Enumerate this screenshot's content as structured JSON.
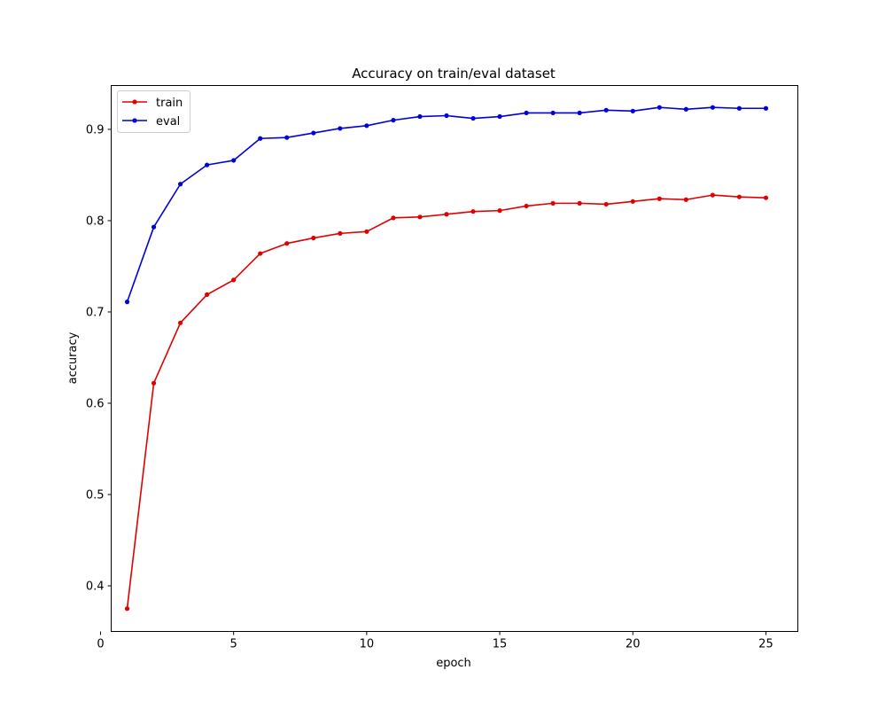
{
  "chart_data": {
    "type": "line",
    "title": "Accuracy on train/eval dataset",
    "xlabel": "epoch",
    "ylabel": "accuracy",
    "x": [
      1,
      2,
      3,
      4,
      5,
      6,
      7,
      8,
      9,
      10,
      11,
      12,
      13,
      14,
      15,
      16,
      17,
      18,
      19,
      20,
      21,
      22,
      23,
      24,
      25
    ],
    "xlim": [
      0.4,
      26.2
    ],
    "ylim": [
      0.35,
      0.948
    ],
    "xticks": [
      0,
      5,
      10,
      15,
      20,
      25
    ],
    "yticks": [
      0.4,
      0.5,
      0.6,
      0.7,
      0.8,
      0.9
    ],
    "ytick_labels": [
      "0.4",
      "0.5",
      "0.6",
      "0.7",
      "0.8",
      "0.9"
    ],
    "grid": false,
    "legend_position": "top-left",
    "marker": "dot",
    "series": [
      {
        "name": "train",
        "color": "#e00000",
        "values": [
          0.375,
          0.622,
          0.688,
          0.719,
          0.735,
          0.764,
          0.775,
          0.781,
          0.786,
          0.788,
          0.803,
          0.804,
          0.807,
          0.81,
          0.811,
          0.816,
          0.819,
          0.819,
          0.818,
          0.821,
          0.824,
          0.823,
          0.828,
          0.826,
          0.825
        ]
      },
      {
        "name": "eval",
        "color": "#0000d8",
        "values": [
          0.711,
          0.793,
          0.84,
          0.861,
          0.866,
          0.89,
          0.891,
          0.896,
          0.901,
          0.904,
          0.91,
          0.914,
          0.915,
          0.912,
          0.914,
          0.918,
          0.918,
          0.918,
          0.921,
          0.92,
          0.924,
          0.922,
          0.924,
          0.923,
          0.923
        ]
      }
    ]
  }
}
